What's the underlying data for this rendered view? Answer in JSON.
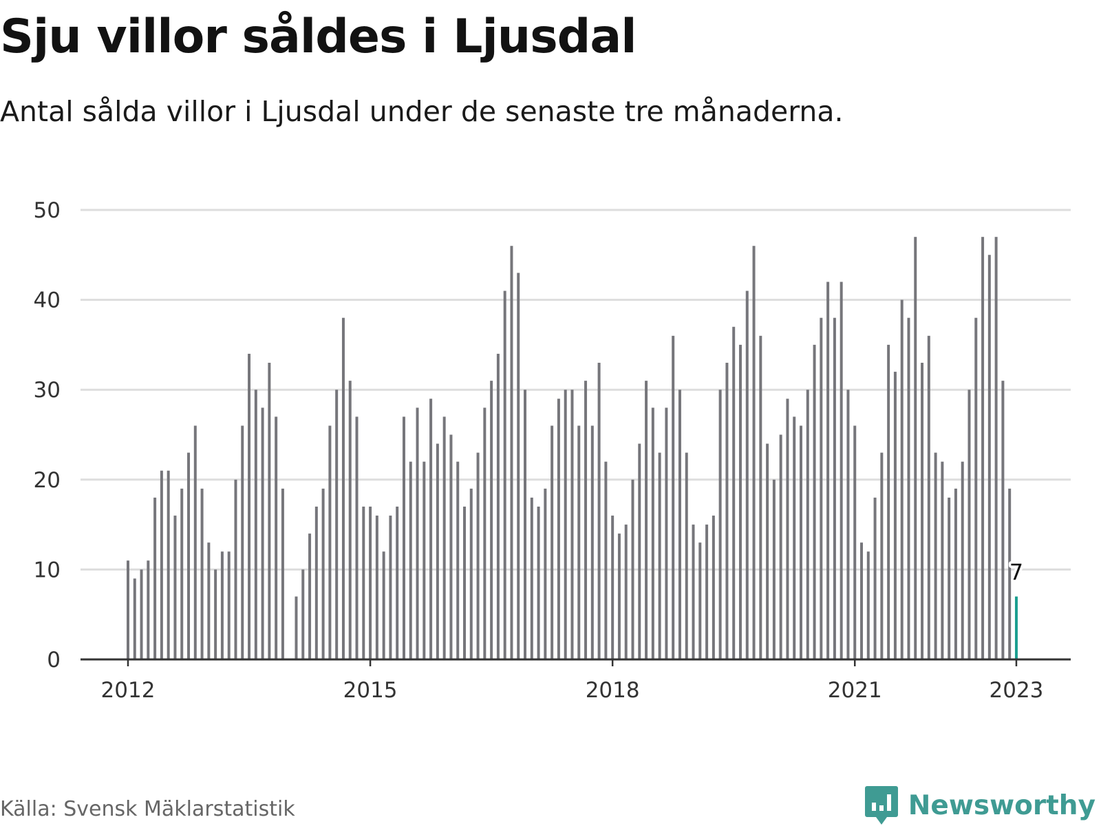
{
  "header": {
    "title": "Sju villor såldes i Ljusdal",
    "subtitle": "Antal sålda villor i Ljusdal under de senaste tre månaderna."
  },
  "footer": {
    "source": "Källa: Svensk Mäklarstatistik",
    "brand": "Newsworthy",
    "brand_icon": "bar-chart-speech-bubble-icon"
  },
  "colors": {
    "bar": "#76767b",
    "highlight": "#1a9e8f",
    "grid": "#dddddd",
    "axis": "#333333",
    "brand": "#3f9b93"
  },
  "chart_data": {
    "type": "bar",
    "x_start": "2012-01",
    "x_step": "month",
    "values": [
      11,
      9,
      10,
      11,
      18,
      21,
      21,
      16,
      19,
      23,
      26,
      19,
      13,
      10,
      12,
      12,
      20,
      26,
      34,
      30,
      28,
      33,
      27,
      19,
      null,
      7,
      10,
      14,
      17,
      19,
      26,
      30,
      38,
      31,
      27,
      17,
      17,
      16,
      12,
      16,
      17,
      27,
      22,
      28,
      22,
      29,
      24,
      27,
      25,
      22,
      17,
      19,
      23,
      28,
      31,
      34,
      41,
      46,
      43,
      30,
      18,
      17,
      19,
      26,
      29,
      30,
      30,
      26,
      31,
      26,
      33,
      22,
      16,
      14,
      15,
      20,
      24,
      31,
      28,
      23,
      28,
      36,
      30,
      23,
      15,
      13,
      15,
      16,
      30,
      33,
      37,
      35,
      41,
      46,
      36,
      24,
      20,
      25,
      29,
      27,
      26,
      30,
      35,
      38,
      42,
      38,
      42,
      30,
      26,
      13,
      12,
      18,
      23,
      35,
      32,
      40,
      38,
      47,
      33,
      36,
      23,
      22,
      18,
      19,
      22,
      30,
      38,
      47,
      45,
      47,
      31,
      19,
      7
    ],
    "highlight_last": true,
    "highlight_label": "7",
    "x_ticks": [
      {
        "label": "2012",
        "date": "2012-01"
      },
      {
        "label": "2015",
        "date": "2015-01"
      },
      {
        "label": "2018",
        "date": "2018-01"
      },
      {
        "label": "2021",
        "date": "2021-01"
      },
      {
        "label": "2023",
        "date": "2023-01"
      }
    ],
    "y_ticks": [
      0,
      10,
      20,
      30,
      40,
      50
    ],
    "ylim": [
      0,
      50
    ],
    "grid": true,
    "legend": "none"
  }
}
